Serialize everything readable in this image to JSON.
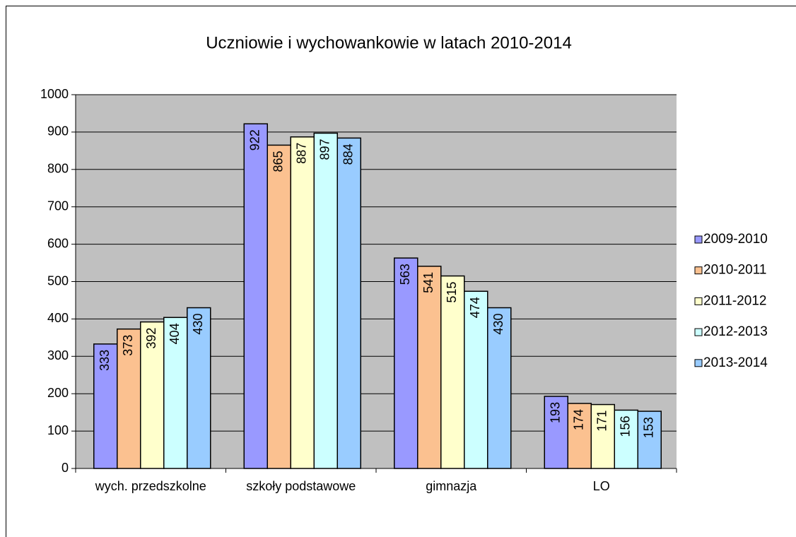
{
  "chart_data": {
    "type": "bar",
    "title": "Uczniowie i wychowankowie w latach 2010-2014",
    "categories": [
      "wych. przedszkolne",
      "szkoły podstawowe",
      "gimnazja",
      "LO"
    ],
    "series": [
      {
        "name": "2009-2010",
        "color": "#9999ff",
        "values": [
          333,
          922,
          563,
          193
        ]
      },
      {
        "name": "2010-2011",
        "color": "#fbc190",
        "values": [
          373,
          865,
          541,
          174
        ]
      },
      {
        "name": "2011-2012",
        "color": "#ffffcc",
        "values": [
          392,
          887,
          515,
          171
        ]
      },
      {
        "name": "2012-2013",
        "color": "#ccffff",
        "values": [
          404,
          897,
          474,
          156
        ]
      },
      {
        "name": "2013-2014",
        "color": "#99ccff",
        "values": [
          430,
          884,
          430,
          153
        ]
      }
    ],
    "ylim": [
      0,
      1000
    ],
    "yticks": [
      0,
      100,
      200,
      300,
      400,
      500,
      600,
      700,
      800,
      900,
      1000
    ],
    "grid": true,
    "legend": "right",
    "plot_background": "#c0c0c0"
  }
}
